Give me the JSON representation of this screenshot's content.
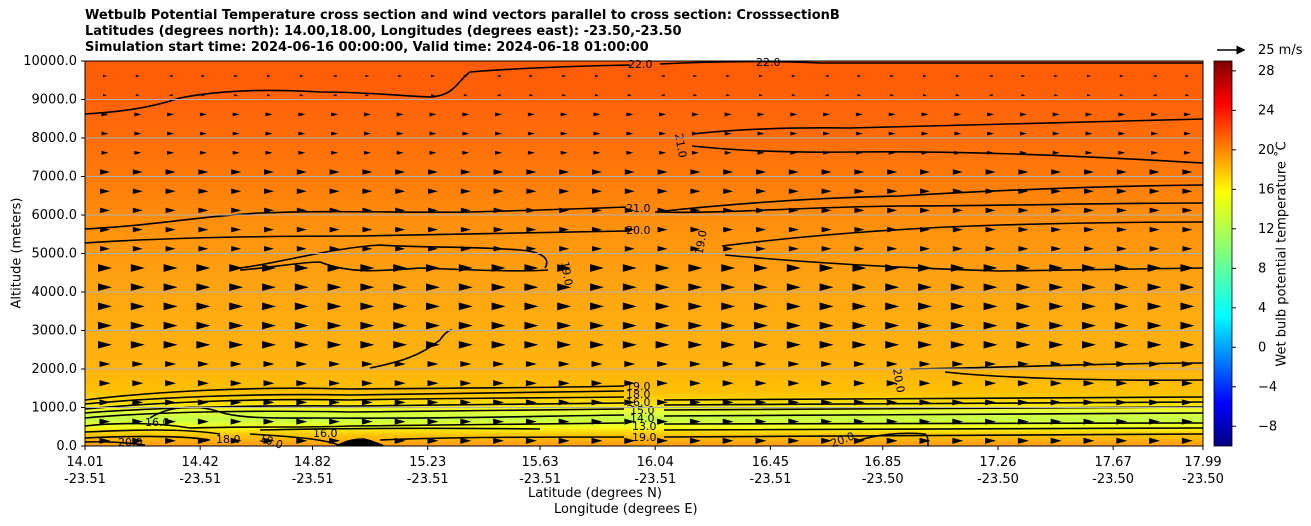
{
  "chart_data": {
    "type": "heatmap",
    "title_lines": [
      "Wetbulb Potential Temperature cross section and wind vectors parallel to cross section: CrosssectionB",
      "Latitudes (degrees north): 14.00,18.00, Longitudes (degrees east): -23.50,-23.50",
      "Simulation start time: 2024-06-16 00:00:00, Valid time: 2024-06-18 01:00:00"
    ],
    "ylabel": "Altitude (meters)",
    "xlabel": "Latitude (degrees N)",
    "xlabel2": "Longitude (degrees E)",
    "ylim": [
      0,
      10000
    ],
    "yticks": [
      "0.0",
      "1000.0",
      "2000.0",
      "3000.0",
      "4000.0",
      "5000.0",
      "6000.0",
      "7000.0",
      "8000.0",
      "9000.0",
      "10000.0"
    ],
    "xlim": [
      14.01,
      17.99
    ],
    "xticks": [
      {
        "lat": "14.01",
        "lon": "-23.51"
      },
      {
        "lat": "14.42",
        "lon": "-23.51"
      },
      {
        "lat": "14.82",
        "lon": "-23.51"
      },
      {
        "lat": "15.23",
        "lon": "-23.51"
      },
      {
        "lat": "15.63",
        "lon": "-23.51"
      },
      {
        "lat": "16.04",
        "lon": "-23.51"
      },
      {
        "lat": "16.45",
        "lon": "-23.51"
      },
      {
        "lat": "16.85",
        "lon": "-23.50"
      },
      {
        "lat": "17.26",
        "lon": "-23.50"
      },
      {
        "lat": "17.67",
        "lon": "-23.50"
      },
      {
        "lat": "17.99",
        "lon": "-23.50"
      }
    ],
    "grid": "horizontal",
    "colorbar": {
      "label": "Wet bulb potential temperature ˚C",
      "range": [
        -10,
        29
      ],
      "ticks": [
        "28",
        "24",
        "20",
        "16",
        "12",
        "8",
        "4",
        "0",
        "−4",
        "−8"
      ],
      "tick_values": [
        28,
        24,
        20,
        16,
        12,
        8,
        4,
        0,
        -4,
        -8
      ]
    },
    "vector_reference": "25 m/s",
    "contours": [
      {
        "level": 22.0,
        "label": "22.0",
        "approx_alt": [
          8600,
          9700
        ]
      },
      {
        "level": 21.0,
        "label": "21.0",
        "approx_alt": [
          5800,
          8400
        ]
      },
      {
        "level": 20.0,
        "label": "20.0",
        "approx_alt": [
          5300,
          6400
        ]
      },
      {
        "level": 19.0,
        "label": "19.0",
        "approx_alt": [
          4500,
          5200
        ]
      },
      {
        "level": 20.0,
        "label": "20.0",
        "approx_alt": [
          1900,
          2200
        ]
      },
      {
        "level": 19.0,
        "label": "19.0",
        "approx_alt": [
          1500,
          1600
        ]
      },
      {
        "level": 18.0,
        "label": "18.0",
        "approx_alt": [
          1300,
          1400
        ]
      },
      {
        "level": 16.0,
        "label": "16.0",
        "approx_alt": [
          1100,
          1200
        ]
      },
      {
        "level": 15.0,
        "label": "15.0",
        "approx_alt": [
          900,
          1000
        ]
      },
      {
        "level": 14.0,
        "label": "14.0",
        "approx_alt": [
          800,
          900
        ]
      },
      {
        "level": 13.0,
        "label": "13.0",
        "approx_alt": [
          600,
          700
        ]
      },
      {
        "level": 16.0,
        "label": "16.0",
        "approx_alt": [
          250,
          400
        ]
      },
      {
        "level": 18.0,
        "label": "18.0",
        "approx_alt": [
          150,
          250
        ]
      },
      {
        "level": 19.0,
        "label": "19.0",
        "approx_alt": [
          200,
          350
        ]
      },
      {
        "level": 20.0,
        "label": "20.0",
        "approx_alt": [
          50,
          150
        ]
      }
    ],
    "wind": "vectors mostly pointing toward increasing latitude (northward along the section), stronger between 1000 and 5000 m"
  }
}
